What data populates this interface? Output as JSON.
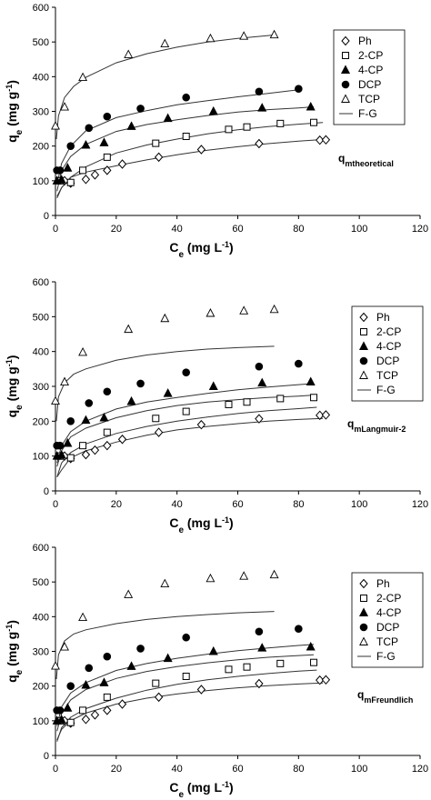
{
  "chart_data": [
    {
      "type": "scatter",
      "annotation_main": "q",
      "annotation_sub": "mtheoretical",
      "xlabel_main": "C",
      "xlabel_sub": "e",
      "xlabel_unit": " (mg L",
      "xlabel_exp": "-1",
      "xlabel_close": ")",
      "ylabel_main": "q",
      "ylabel_sub": "e",
      "ylabel_unit": " (mg g",
      "ylabel_exp": "-1",
      "ylabel_close": ")",
      "xlim": [
        0,
        120
      ],
      "ylim": [
        0,
        600
      ],
      "xticks": [
        "0",
        "20",
        "40",
        "60",
        "80",
        "100",
        "120"
      ],
      "yticks": [
        "0",
        "100",
        "200",
        "300",
        "400",
        "500",
        "600"
      ],
      "legend_position": "top-right",
      "series": [
        {
          "name": "Ph",
          "marker": "diamond",
          "x": [
            3,
            5,
            10,
            13,
            17,
            22,
            34,
            48,
            67,
            87,
            89
          ],
          "y": [
            100,
            93,
            104,
            117,
            130,
            148,
            168,
            190,
            207,
            217,
            218
          ]
        },
        {
          "name": "2-CP",
          "marker": "square",
          "x": [
            1.5,
            5,
            9,
            17,
            33,
            43,
            57,
            63,
            74,
            85
          ],
          "y": [
            100,
            95,
            130,
            168,
            208,
            228,
            248,
            255,
            265,
            268
          ]
        },
        {
          "name": "4-CP",
          "marker": "triangle",
          "x": [
            0.5,
            2,
            4,
            10,
            16,
            25,
            37,
            52,
            68,
            84
          ],
          "y": [
            100,
            103,
            137,
            203,
            210,
            257,
            280,
            300,
            310,
            313
          ]
        },
        {
          "name": "DCP",
          "marker": "circle",
          "x": [
            0.5,
            1.5,
            5,
            11,
            17,
            28,
            43,
            67,
            80
          ],
          "y": [
            130,
            130,
            200,
            252,
            285,
            308,
            340,
            357,
            365
          ]
        },
        {
          "name": "TCP",
          "marker": "triangle-open",
          "x": [
            0,
            3,
            9,
            24,
            36,
            51,
            62,
            72
          ],
          "y": [
            258,
            313,
            398,
            464,
            495,
            510,
            517,
            521
          ]
        }
      ],
      "fits": [
        {
          "name": "F-G",
          "x": [
            0.5,
            2,
            5,
            10,
            20,
            30,
            40,
            50,
            60,
            70,
            80,
            90
          ],
          "y": [
            55,
            80,
            110,
            125,
            143,
            160,
            175,
            188,
            198,
            207,
            214,
            220
          ]
        },
        {
          "name": "F-G",
          "x": [
            0.5,
            2,
            5,
            10,
            20,
            30,
            40,
            50,
            60,
            70,
            80,
            88
          ],
          "y": [
            50,
            80,
            110,
            140,
            180,
            203,
            220,
            235,
            247,
            256,
            263,
            268
          ]
        },
        {
          "name": "F-G",
          "x": [
            0.5,
            2,
            5,
            10,
            20,
            30,
            40,
            50,
            60,
            70,
            80,
            85
          ],
          "y": [
            70,
            130,
            170,
            205,
            242,
            262,
            276,
            288,
            298,
            305,
            310,
            313
          ]
        },
        {
          "name": "F-G",
          "x": [
            0.5,
            2,
            5,
            10,
            20,
            30,
            40,
            50,
            60,
            70,
            80
          ],
          "y": [
            90,
            150,
            200,
            244,
            282,
            302,
            319,
            331,
            342,
            352,
            362
          ]
        },
        {
          "name": "F-G",
          "x": [
            0.3,
            1,
            3,
            6,
            10,
            20,
            30,
            40,
            50,
            60,
            72
          ],
          "y": [
            220,
            287,
            340,
            372,
            398,
            440,
            466,
            485,
            500,
            510,
            520
          ]
        }
      ]
    },
    {
      "type": "scatter",
      "annotation_main": "q",
      "annotation_sub": "mLangmuir-2",
      "xlabel_main": "C",
      "xlabel_sub": "e",
      "xlabel_unit": " (mg L",
      "xlabel_exp": "-1",
      "xlabel_close": ")",
      "ylabel_main": "q",
      "ylabel_sub": "e",
      "ylabel_unit": " (mg g",
      "ylabel_exp": "-1",
      "ylabel_close": ")",
      "xlim": [
        0,
        120
      ],
      "ylim": [
        0,
        600
      ],
      "xticks": [
        "0",
        "20",
        "40",
        "60",
        "80",
        "100",
        "120"
      ],
      "yticks": [
        "0",
        "100",
        "200",
        "300",
        "400",
        "500",
        "600"
      ],
      "legend_position": "top-right",
      "series": [
        {
          "name": "Ph",
          "marker": "diamond",
          "x": [
            3,
            5,
            10,
            13,
            17,
            22,
            34,
            48,
            67,
            87,
            89
          ],
          "y": [
            100,
            93,
            104,
            117,
            130,
            148,
            168,
            190,
            207,
            217,
            218
          ]
        },
        {
          "name": "2-CP",
          "marker": "square",
          "x": [
            1.5,
            5,
            9,
            17,
            33,
            43,
            57,
            63,
            74,
            85
          ],
          "y": [
            100,
            95,
            130,
            168,
            208,
            228,
            248,
            255,
            265,
            268
          ]
        },
        {
          "name": "4-CP",
          "marker": "triangle",
          "x": [
            0.5,
            2,
            4,
            10,
            16,
            25,
            37,
            52,
            68,
            84
          ],
          "y": [
            100,
            103,
            137,
            203,
            210,
            257,
            280,
            300,
            310,
            313
          ]
        },
        {
          "name": "DCP",
          "marker": "circle",
          "x": [
            0.5,
            1.5,
            5,
            11,
            17,
            28,
            43,
            67,
            80
          ],
          "y": [
            130,
            130,
            200,
            252,
            285,
            308,
            340,
            357,
            365
          ]
        },
        {
          "name": "TCP",
          "marker": "triangle-open",
          "x": [
            0,
            3,
            9,
            24,
            36,
            51,
            62,
            72
          ],
          "y": [
            258,
            313,
            398,
            464,
            495,
            510,
            517,
            521
          ]
        }
      ],
      "fits": [
        {
          "name": "F-G",
          "x": [
            0.5,
            2,
            5,
            10,
            20,
            30,
            40,
            50,
            60,
            70,
            80,
            88
          ],
          "y": [
            40,
            60,
            95,
            115,
            140,
            160,
            175,
            185,
            193,
            200,
            205,
            208
          ]
        },
        {
          "name": "F-G",
          "x": [
            0.5,
            2,
            5,
            10,
            20,
            30,
            40,
            50,
            60,
            70,
            80,
            86
          ],
          "y": [
            40,
            80,
            110,
            135,
            165,
            185,
            200,
            212,
            222,
            230,
            236,
            240
          ]
        },
        {
          "name": "F-G",
          "x": [
            0.5,
            2,
            5,
            10,
            20,
            30,
            40,
            50,
            60,
            70,
            80,
            85
          ],
          "y": [
            80,
            130,
            170,
            200,
            235,
            255,
            268,
            280,
            290,
            298,
            305,
            308
          ]
        },
        {
          "name": "F-G",
          "x": [
            0.5,
            2,
            5,
            10,
            20,
            30,
            40,
            50,
            60,
            70,
            80,
            85
          ],
          "y": [
            70,
            115,
            155,
            180,
            210,
            230,
            245,
            255,
            262,
            268,
            272,
            275
          ]
        },
        {
          "name": "F-G",
          "x": [
            0.3,
            1,
            3,
            6,
            10,
            20,
            30,
            40,
            50,
            60,
            72
          ],
          "y": [
            200,
            270,
            310,
            335,
            350,
            375,
            390,
            400,
            407,
            411,
            415
          ]
        }
      ]
    },
    {
      "type": "scatter",
      "annotation_main": "q",
      "annotation_sub": "mFreundlich",
      "xlabel_main": "C",
      "xlabel_sub": "e",
      "xlabel_unit": " (mg L",
      "xlabel_exp": "-1",
      "xlabel_close": ")",
      "ylabel_main": "q",
      "ylabel_sub": "e",
      "ylabel_unit": " (mg g",
      "ylabel_exp": "-1",
      "ylabel_close": ")",
      "xlim": [
        0,
        120
      ],
      "ylim": [
        0,
        600
      ],
      "xticks": [
        "0",
        "20",
        "40",
        "60",
        "80",
        "100",
        "120"
      ],
      "yticks": [
        "0",
        "100",
        "200",
        "300",
        "400",
        "500",
        "600"
      ],
      "legend_position": "top-right",
      "series": [
        {
          "name": "Ph",
          "marker": "diamond",
          "x": [
            3,
            5,
            10,
            13,
            17,
            22,
            34,
            48,
            67,
            87,
            89
          ],
          "y": [
            100,
            93,
            104,
            117,
            130,
            148,
            168,
            190,
            207,
            217,
            218
          ]
        },
        {
          "name": "2-CP",
          "marker": "square",
          "x": [
            1.5,
            5,
            9,
            17,
            33,
            43,
            57,
            63,
            74,
            85
          ],
          "y": [
            100,
            95,
            130,
            168,
            208,
            228,
            248,
            255,
            265,
            268
          ]
        },
        {
          "name": "4-CP",
          "marker": "triangle",
          "x": [
            0.5,
            2,
            4,
            10,
            16,
            25,
            37,
            52,
            68,
            84
          ],
          "y": [
            100,
            103,
            137,
            203,
            210,
            257,
            280,
            300,
            310,
            313
          ]
        },
        {
          "name": "DCP",
          "marker": "circle",
          "x": [
            0.5,
            1.5,
            5,
            11,
            17,
            28,
            43,
            67,
            80
          ],
          "y": [
            130,
            130,
            200,
            252,
            285,
            308,
            340,
            357,
            365
          ]
        },
        {
          "name": "TCP",
          "marker": "triangle-open",
          "x": [
            0,
            3,
            9,
            24,
            36,
            51,
            62,
            72
          ],
          "y": [
            258,
            313,
            398,
            464,
            495,
            510,
            517,
            521
          ]
        }
      ],
      "fits": [
        {
          "name": "F-G",
          "x": [
            0.5,
            2,
            5,
            10,
            20,
            30,
            40,
            50,
            60,
            70,
            80,
            88
          ],
          "y": [
            45,
            75,
            100,
            122,
            148,
            165,
            177,
            187,
            195,
            201,
            206,
            209
          ]
        },
        {
          "name": "F-G",
          "x": [
            0.5,
            2,
            5,
            10,
            20,
            30,
            40,
            50,
            60,
            70,
            80,
            86
          ],
          "y": [
            40,
            80,
            110,
            135,
            165,
            188,
            205,
            218,
            228,
            236,
            243,
            246
          ]
        },
        {
          "name": "F-G",
          "x": [
            0.5,
            2,
            5,
            10,
            20,
            30,
            40,
            50,
            60,
            70,
            80,
            85
          ],
          "y": [
            85,
            140,
            180,
            210,
            245,
            265,
            280,
            292,
            302,
            310,
            317,
            320
          ]
        },
        {
          "name": "F-G",
          "x": [
            0.5,
            2,
            5,
            10,
            20,
            30,
            40,
            50,
            60,
            70,
            80,
            85
          ],
          "y": [
            70,
            120,
            160,
            190,
            222,
            242,
            256,
            267,
            276,
            283,
            288,
            290
          ]
        },
        {
          "name": "F-G",
          "x": [
            0.3,
            1,
            3,
            6,
            10,
            20,
            30,
            40,
            50,
            60,
            72
          ],
          "y": [
            220,
            290,
            330,
            350,
            362,
            380,
            392,
            400,
            406,
            411,
            415
          ]
        }
      ]
    }
  ],
  "colors": {
    "ink": "#000000",
    "fit_line": "#333333",
    "background": "#ffffff"
  }
}
